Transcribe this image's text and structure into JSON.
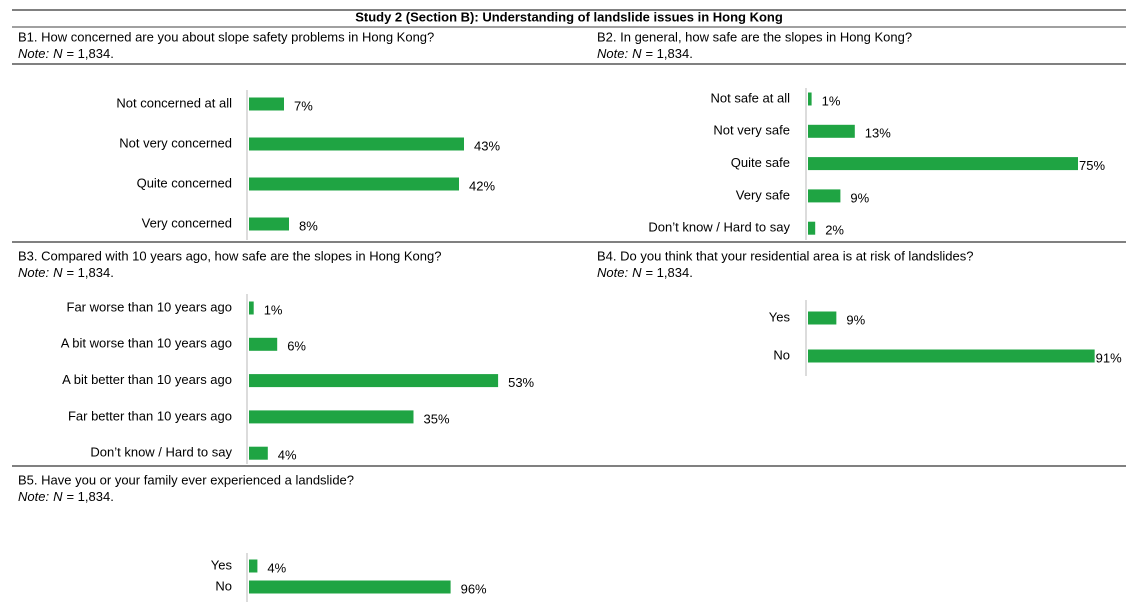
{
  "title": "Study 2 (Section B): Understanding of landslide issues in Hong Kong",
  "chart_data": [
    {
      "type": "bar",
      "orientation": "horizontal",
      "title": "B1. How concerned are you about slope safety problems in Hong Kong?",
      "note": [
        "Note:",
        "N",
        "= 1,834."
      ],
      "categories": [
        "Not concerned at all",
        "Not very concerned",
        "Quite concerned",
        "Very concerned"
      ],
      "values": [
        7,
        43,
        42,
        8
      ],
      "value_labels": [
        "7%",
        "43%",
        "42%",
        "8%"
      ],
      "color": "#1fa443"
    },
    {
      "type": "bar",
      "orientation": "horizontal",
      "title": "B2. In general, how safe are the slopes in Hong Kong?",
      "note": [
        "Note:",
        "N",
        "= 1,834."
      ],
      "categories": [
        "Not safe at all",
        "Not very safe",
        "Quite safe",
        "Very safe",
        "Don’t know / Hard to say"
      ],
      "values": [
        1,
        13,
        75,
        9,
        2
      ],
      "value_labels": [
        "1%",
        "13%",
        "75%",
        "9%",
        "2%"
      ],
      "color": "#1fa443"
    },
    {
      "type": "bar",
      "orientation": "horizontal",
      "title": "B3. Compared with 10 years ago, how safe are the slopes in Hong Kong?",
      "note": [
        "Note:",
        "N",
        "= 1,834."
      ],
      "categories": [
        "Far worse than 10 years ago",
        "A bit worse than 10 years ago",
        "A bit better than 10 years ago",
        "Far better than 10 years ago",
        "Don’t know / Hard to say"
      ],
      "values": [
        1,
        6,
        53,
        35,
        4
      ],
      "value_labels": [
        "1%",
        "6%",
        "53%",
        "35%",
        "4%"
      ],
      "color": "#1fa443"
    },
    {
      "type": "bar",
      "orientation": "horizontal",
      "title": "B4. Do you think that your residential area is at risk of landslides?",
      "note": [
        "Note:",
        "N",
        "= 1,834."
      ],
      "categories": [
        "Yes",
        "No"
      ],
      "values": [
        9,
        91
      ],
      "value_labels": [
        "9%",
        "91%"
      ],
      "color": "#1fa443"
    },
    {
      "type": "bar",
      "orientation": "horizontal",
      "title": "B5. Have you or your family ever experienced a landslide?",
      "note": [
        "Note:",
        "N",
        "= 1,834."
      ],
      "categories": [
        "Yes",
        "No"
      ],
      "values": [
        4,
        96
      ],
      "value_labels": [
        "4%",
        "96%"
      ],
      "color": "#1fa443"
    }
  ]
}
